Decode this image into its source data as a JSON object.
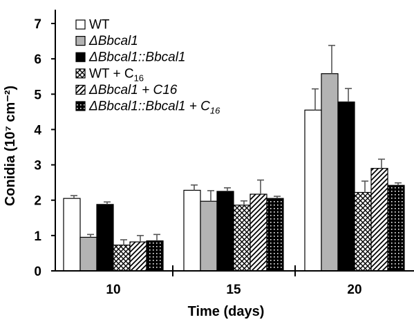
{
  "chart_data": {
    "type": "bar",
    "xlabel": "Time (days)",
    "ylabel": "Conidia (10⁷ cm⁻²)",
    "ylim": [
      0,
      7
    ],
    "yticks": [
      0,
      1,
      2,
      3,
      4,
      5,
      6,
      7
    ],
    "categories": [
      "10",
      "15",
      "20"
    ],
    "legend_position": "top-left",
    "grid": false,
    "series": [
      {
        "name": "WT",
        "pattern": "open",
        "values": [
          2.05,
          2.28,
          4.55
        ],
        "errors": [
          0.08,
          0.15,
          0.6
        ]
      },
      {
        "name": "ΔBbcal1",
        "pattern": "gray",
        "values": [
          0.95,
          1.97,
          5.58
        ],
        "errors": [
          0.08,
          0.3,
          0.8
        ]
      },
      {
        "name": "ΔBbcal1::Bbcal1",
        "pattern": "black",
        "values": [
          1.88,
          2.25,
          4.78
        ],
        "errors": [
          0.07,
          0.1,
          0.38
        ]
      },
      {
        "name": "WT + C16",
        "pattern": "crosshatch",
        "values": [
          0.73,
          1.86,
          2.22
        ],
        "errors": [
          0.15,
          0.12,
          0.32
        ]
      },
      {
        "name": "ΔBbcal1 + C16",
        "pattern": "diagonal",
        "values": [
          0.82,
          2.17,
          2.9
        ],
        "errors": [
          0.18,
          0.4,
          0.26
        ]
      },
      {
        "name": "ΔBbcal1::Bbcal1 + C16",
        "pattern": "dots",
        "values": [
          0.85,
          2.05,
          2.42
        ],
        "errors": [
          0.18,
          0.06,
          0.07
        ]
      }
    ],
    "colors": {
      "gray": "#b3b3b3",
      "black": "#000000",
      "open": "#ffffff"
    }
  },
  "legend": {
    "items": [
      {
        "prefix": "",
        "italic": "",
        "plain": "WT",
        "sub": "",
        "after": ""
      },
      {
        "prefix": "",
        "italic": "ΔBbcal1",
        "plain": "",
        "sub": "",
        "after": ""
      },
      {
        "prefix": "",
        "italic": "ΔBbcal1::Bbcal1",
        "plain": "",
        "sub": "",
        "after": ""
      },
      {
        "prefix": "",
        "italic": "",
        "plain": "WT  + C",
        "sub": "16",
        "after": ""
      },
      {
        "prefix": "",
        "italic": "ΔBbcal1 + C16",
        "plain": "",
        "sub": "",
        "after": ""
      },
      {
        "prefix": "",
        "italic": "ΔBbcal1::Bbcal1 + C",
        "plain": "",
        "sub": "16",
        "after": ""
      }
    ]
  }
}
